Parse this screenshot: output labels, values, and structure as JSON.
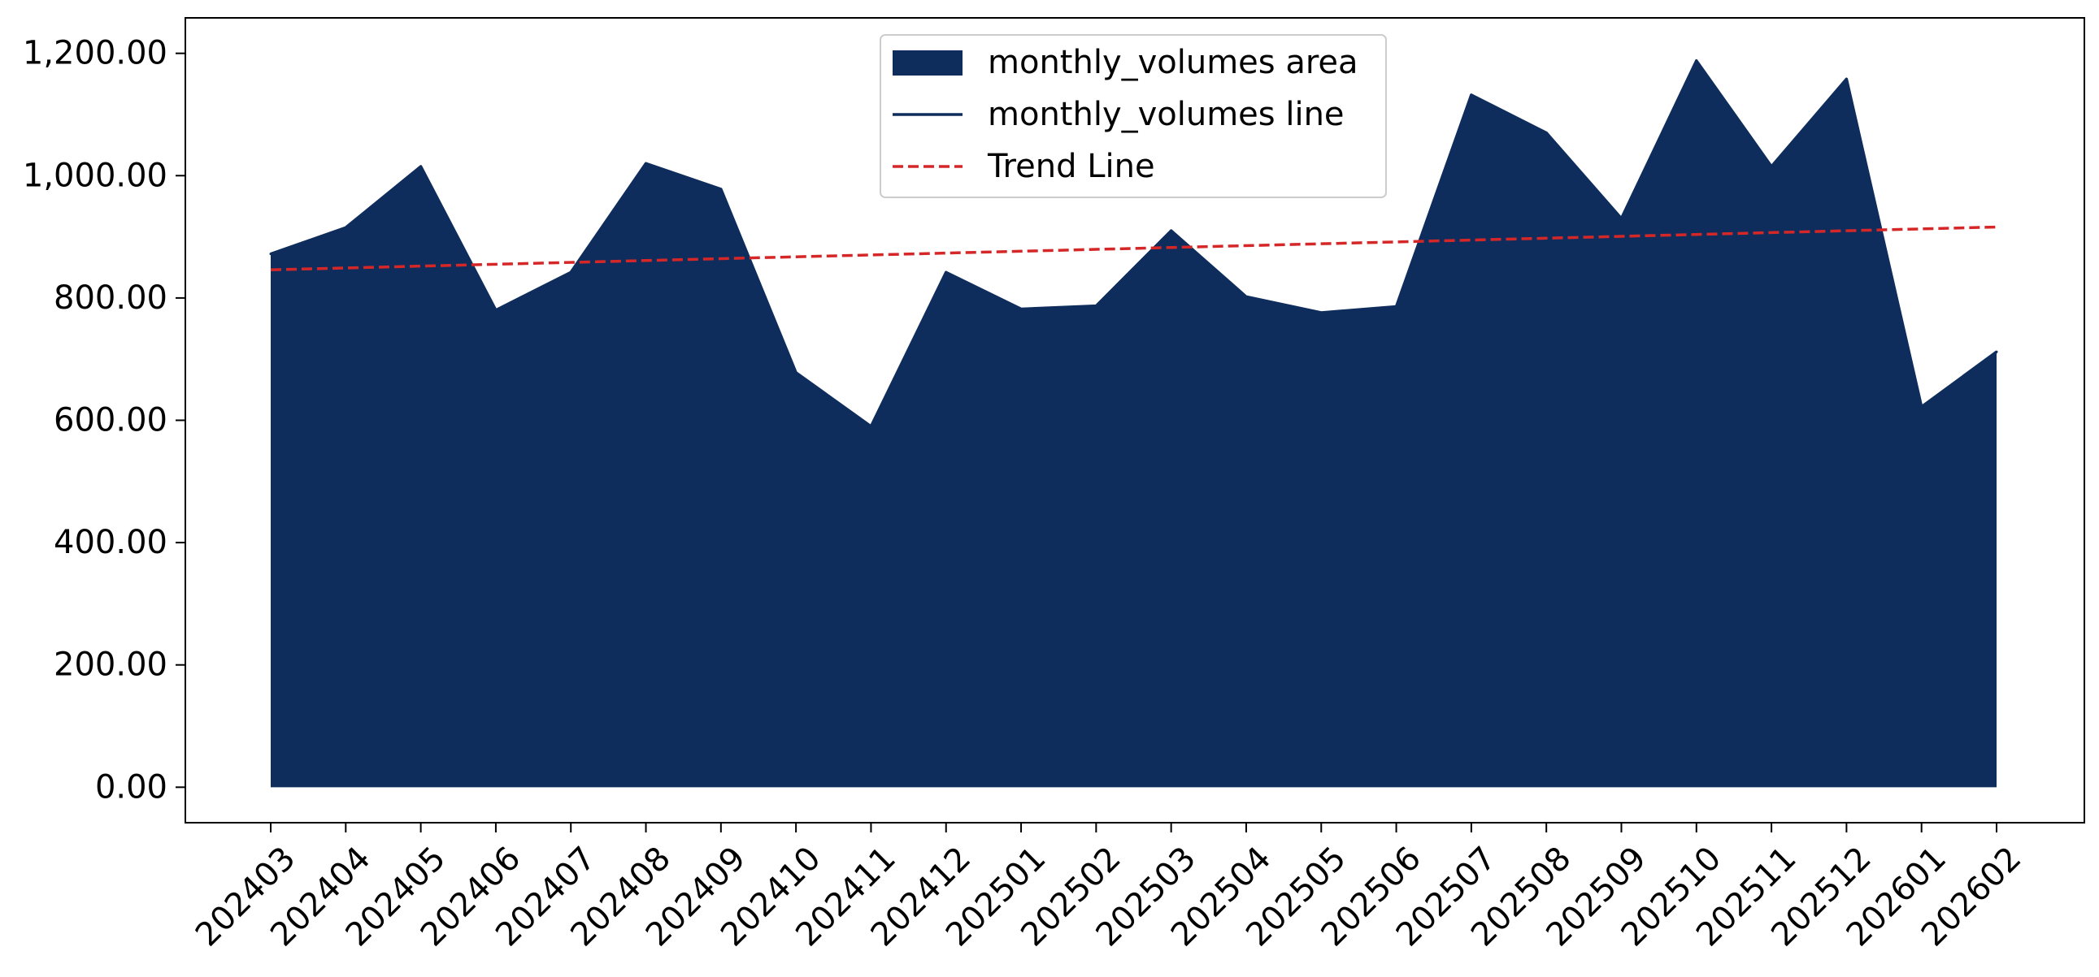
{
  "chart_data": {
    "type": "area",
    "categories": [
      "202403",
      "202404",
      "202405",
      "202406",
      "202407",
      "202408",
      "202409",
      "202410",
      "202411",
      "202412",
      "202501",
      "202502",
      "202503",
      "202504",
      "202505",
      "202506",
      "202507",
      "202508",
      "202509",
      "202510",
      "202511",
      "202512",
      "202601",
      "202602"
    ],
    "series": [
      {
        "name": "monthly_volumes area",
        "kind": "area",
        "color": "#0e2d5c",
        "values": [
          872,
          915,
          1015,
          780,
          842,
          1020,
          978,
          678,
          590,
          842,
          782,
          787,
          910,
          802,
          776,
          786,
          1132,
          1070,
          930,
          1188,
          1015,
          1158,
          622,
          712
        ]
      },
      {
        "name": "monthly_volumes line",
        "kind": "line",
        "color": "#0e2d5c",
        "values": [
          872,
          915,
          1015,
          780,
          842,
          1020,
          978,
          678,
          590,
          842,
          782,
          787,
          910,
          802,
          776,
          786,
          1132,
          1070,
          930,
          1188,
          1015,
          1158,
          622,
          712
        ]
      },
      {
        "name": "Trend Line",
        "kind": "trend",
        "color": "#d62728",
        "start": 846,
        "end": 916
      }
    ],
    "yticks": [
      "0.00",
      "200.00",
      "400.00",
      "600.00",
      "800.00",
      "1,000.00",
      "1,200.00"
    ],
    "ytick_values": [
      0,
      200,
      400,
      600,
      800,
      1000,
      1200
    ],
    "ylim": [
      -58,
      1258
    ],
    "title": "",
    "xlabel": "",
    "ylabel": "",
    "grid": false,
    "legend_position": "top-center"
  }
}
